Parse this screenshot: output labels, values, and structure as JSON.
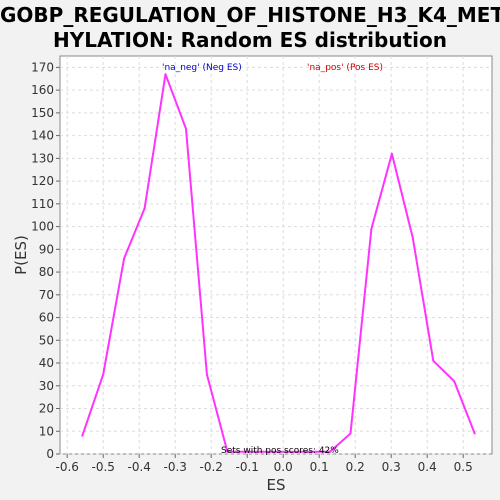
{
  "chart_data": {
    "type": "line",
    "title": "GOBP_REGULATION_OF_HISTONE_H3_K4_METHYLATION: Random ES distribution",
    "title_lines": [
      "GOBP_REGULATION_OF_HISTONE_H3_K4_MET",
      "HYLATION: Random ES distribution"
    ],
    "xlabel": "ES",
    "ylabel": "P(ES)",
    "xlim": [
      -0.62,
      0.58
    ],
    "ylim": [
      0,
      175
    ],
    "x_ticks": [
      "-0.6",
      "-0.5",
      "-0.4",
      "-0.3",
      "-0.2",
      "-0.1",
      "0.0",
      "0.1",
      "0.2",
      "0.3",
      "0.4",
      "0.5"
    ],
    "x_tick_values": [
      -0.6,
      -0.5,
      -0.4,
      -0.3,
      -0.2,
      -0.1,
      0.0,
      0.1,
      0.2,
      0.3,
      0.4,
      0.5
    ],
    "y_ticks": [
      "0",
      "10",
      "20",
      "30",
      "40",
      "50",
      "60",
      "70",
      "80",
      "90",
      "100",
      "110",
      "120",
      "130",
      "140",
      "150",
      "160",
      "170"
    ],
    "y_tick_values": [
      0,
      10,
      20,
      30,
      40,
      50,
      60,
      70,
      80,
      90,
      100,
      110,
      120,
      130,
      140,
      150,
      160,
      170
    ],
    "grid": true,
    "series": [
      {
        "color": "#ff33ff",
        "x": [
          -0.558,
          -0.5,
          -0.442,
          -0.385,
          -0.327,
          -0.27,
          -0.212,
          -0.155,
          0.13,
          0.187,
          0.245,
          0.302,
          0.36,
          0.417,
          0.475,
          0.532
        ],
        "y": [
          8,
          35,
          86,
          108,
          167,
          143,
          35,
          1,
          1,
          9,
          99,
          132,
          95,
          41,
          32,
          9
        ]
      }
    ],
    "legend": {
      "neg_label": "'na_neg' (Neg ES)",
      "pos_label": "'na_pos' (Pos ES)",
      "neg_color": "#0000cc",
      "pos_color": "#cc0000"
    },
    "annotation": "Sets with pos scores: 42%"
  }
}
